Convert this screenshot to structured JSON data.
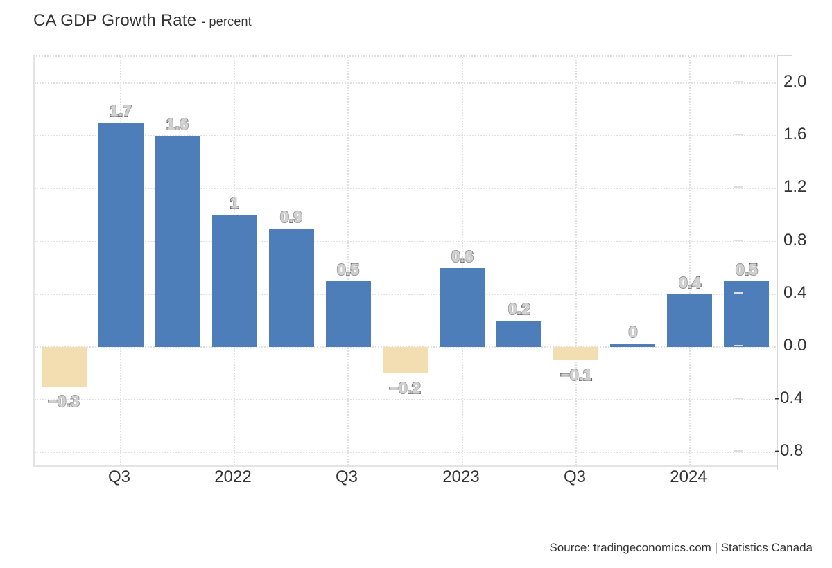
{
  "header": {
    "title": "CA GDP Growth Rate",
    "subtitle": "- percent"
  },
  "footer": {
    "source": "Source: tradingeconomics.com | Statistics Canada"
  },
  "chart_data": {
    "type": "bar",
    "title": "CA GDP Growth Rate",
    "unit": "percent",
    "values": [
      -0.3,
      1.7,
      1.6,
      1,
      0.9,
      0.5,
      -0.2,
      0.6,
      0.2,
      -0.1,
      0,
      0.4,
      0.5
    ],
    "bar_labels": [
      "−0.3",
      "1.7",
      "1.6",
      "1",
      "0.9",
      "0.5",
      "−0.2",
      "0.6",
      "0.2",
      "−0.1",
      "0",
      "0.4",
      "0.5"
    ],
    "x_ticks": [
      {
        "label": "Q3",
        "bar_index": 1
      },
      {
        "label": "2022",
        "bar_index": 3
      },
      {
        "label": "Q3",
        "bar_index": 5
      },
      {
        "label": "2023",
        "bar_index": 7
      },
      {
        "label": "Q3",
        "bar_index": 9
      },
      {
        "label": "2024",
        "bar_index": 11
      }
    ],
    "y_ticks": [
      {
        "label": "2.0",
        "value": 2.0
      },
      {
        "label": "1.6",
        "value": 1.6
      },
      {
        "label": "1.2",
        "value": 1.2
      },
      {
        "label": "0.8",
        "value": 0.8
      },
      {
        "label": "0.4",
        "value": 0.4
      },
      {
        "label": "0.0",
        "value": 0.0
      },
      {
        "label": "-0.4",
        "value": -0.4
      },
      {
        "label": "-0.8",
        "value": -0.8
      }
    ],
    "ylim": [
      -0.9,
      2.2
    ],
    "grid": true,
    "legend": "none",
    "colors": {
      "positive_bar": "#4d7eba",
      "negative_bar": "#f3deb2",
      "grid": "#e0e0e0",
      "axis": "#d8d8d8",
      "text": "#333333",
      "value_label_fill": "#d0d0d0",
      "value_label_stroke": "#262626"
    }
  }
}
